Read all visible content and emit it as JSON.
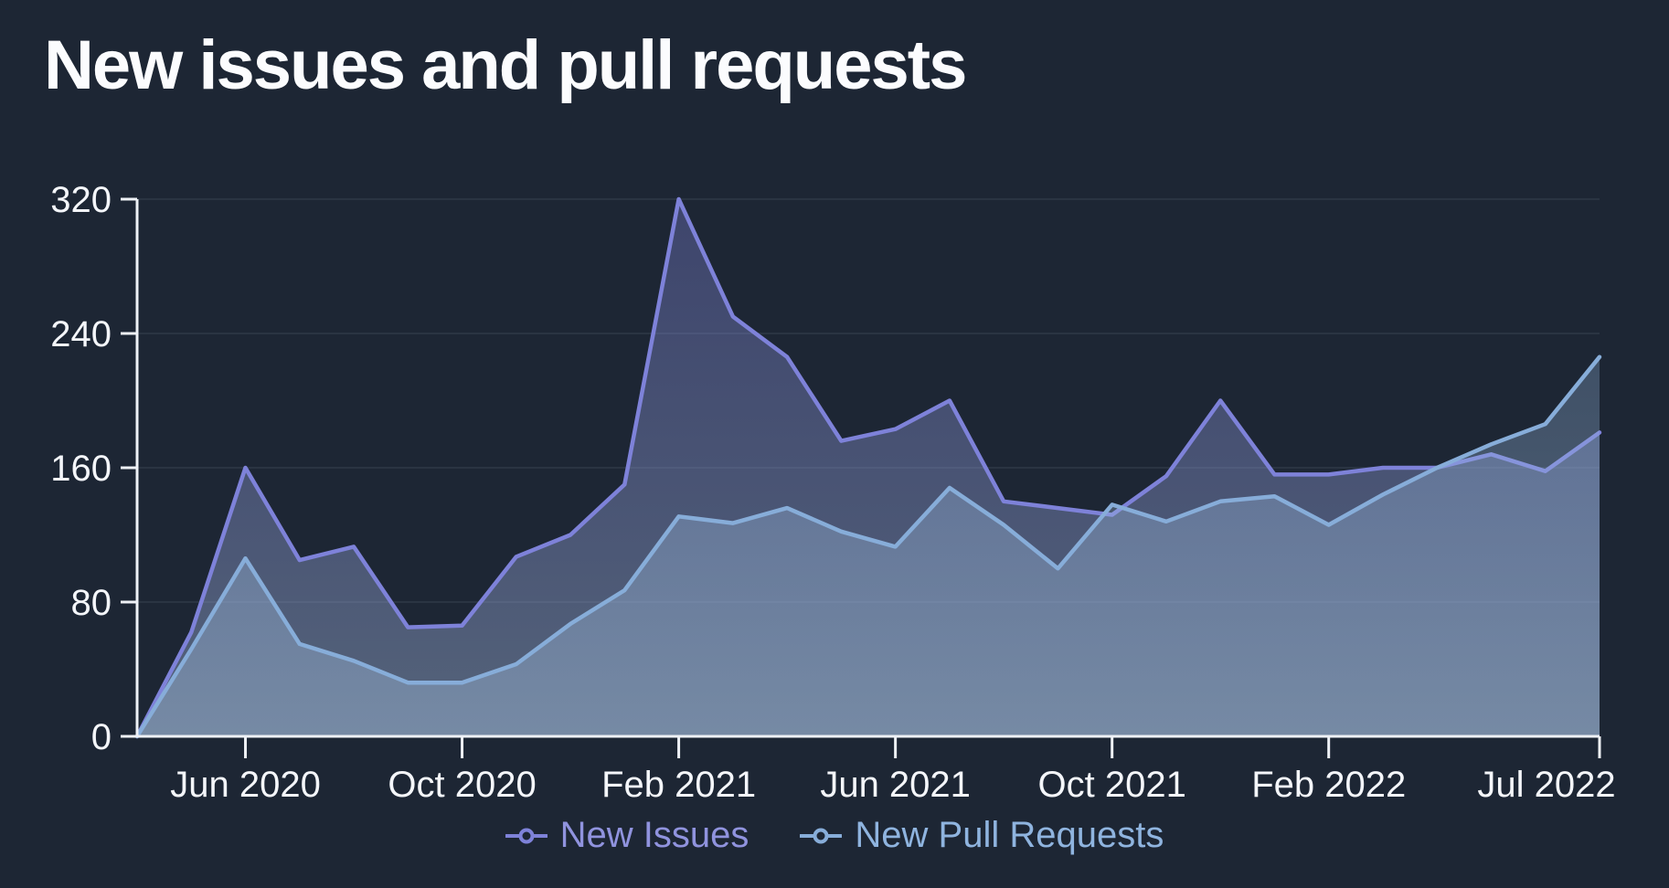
{
  "title": "New issues and pull requests",
  "colors": {
    "background": "#1d2634",
    "axis": "#eef1f6",
    "tick_label": "#f4f6fa",
    "gridline": "rgba(205,220,240,0.08)",
    "issues_line": "#7e82d9",
    "issues_legend_text": "#9093de",
    "prs_line": "#87add9",
    "prs_legend_text": "#8fb4df"
  },
  "chart_data": {
    "type": "area",
    "title": "New issues and pull requests",
    "xlabel": "",
    "ylabel": "",
    "ylim": [
      0,
      320
    ],
    "yticks": [
      0,
      80,
      160,
      240,
      320
    ],
    "grid": true,
    "legend_position": "bottom-center",
    "x": [
      "Apr 2020",
      "May 2020",
      "Jun 2020",
      "Jul 2020",
      "Aug 2020",
      "Sep 2020",
      "Oct 2020",
      "Nov 2020",
      "Dec 2020",
      "Jan 2021",
      "Feb 2021",
      "Mar 2021",
      "Apr 2021",
      "May 2021",
      "Jun 2021",
      "Jul 2021",
      "Aug 2021",
      "Sep 2021",
      "Oct 2021",
      "Nov 2021",
      "Dec 2021",
      "Jan 2022",
      "Feb 2022",
      "Mar 2022",
      "Apr 2022",
      "May 2022",
      "Jun 2022",
      "Jul 2022"
    ],
    "xticks": [
      {
        "index": 2,
        "label": "Jun 2020"
      },
      {
        "index": 6,
        "label": "Oct 2020"
      },
      {
        "index": 10,
        "label": "Feb 2021"
      },
      {
        "index": 14,
        "label": "Jun 2021"
      },
      {
        "index": 18,
        "label": "Oct 2021"
      },
      {
        "index": 22,
        "label": "Feb 2022"
      },
      {
        "index": 27,
        "label": "Jul 2022"
      }
    ],
    "series": [
      {
        "name": "New Issues",
        "color": "#7e82d9",
        "values": [
          0,
          62,
          160,
          105,
          113,
          65,
          66,
          107,
          120,
          150,
          320,
          250,
          226,
          176,
          183,
          200,
          140,
          136,
          132,
          155,
          200,
          156,
          156,
          160,
          160,
          168,
          158,
          181
        ]
      },
      {
        "name": "New Pull Requests",
        "color": "#87add9",
        "values": [
          0,
          52,
          106,
          55,
          45,
          32,
          32,
          43,
          67,
          87,
          131,
          127,
          136,
          122,
          113,
          148,
          126,
          100,
          138,
          128,
          140,
          143,
          126,
          144,
          160,
          174,
          186,
          226
        ]
      }
    ]
  }
}
